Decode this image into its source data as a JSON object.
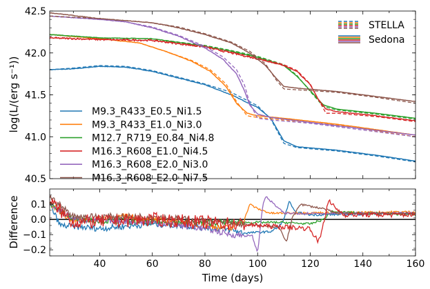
{
  "chart_data": [
    {
      "type": "line",
      "panel": "top",
      "ylabel": "log(L/(erg s⁻¹))",
      "xlim": [
        21,
        160
      ],
      "ylim": [
        40.5,
        42.5
      ],
      "yticks": [
        40.5,
        41.0,
        41.5,
        42.0,
        42.5
      ],
      "ytick_labels": [
        "40.5",
        "41.0",
        "41.5",
        "42.0",
        "42.5"
      ],
      "xticks": [
        40,
        60,
        80,
        100,
        120,
        140,
        160
      ],
      "grid": false,
      "legend_models": {
        "placement": "lower-left",
        "entries": [
          "M9.3_R433_E0.5_Ni1.5",
          "M9.3_R433_E1.0_Ni3.0",
          "M12.7_R719_E0.84_Ni4.8",
          "M16.3_R608_E1.0_Ni4.5",
          "M16.3_R608_E2.0_Ni3.0",
          "M16.3_R608_E2.0_Ni7.5"
        ]
      },
      "legend_codes": {
        "placement": "top-right",
        "entries": [
          {
            "label": "STELLA",
            "style": "dashed"
          },
          {
            "label": "Sedona",
            "style": "solid"
          }
        ]
      },
      "series": [
        {
          "name": "M9.3_R433_E0.5_Ni1.5",
          "color": "#1f77b4",
          "x": [
            21,
            30,
            40,
            50,
            60,
            70,
            80,
            90,
            100,
            105,
            110,
            115,
            130,
            145,
            160
          ],
          "sedona": [
            41.8,
            41.81,
            41.84,
            41.83,
            41.78,
            41.7,
            41.62,
            41.5,
            41.35,
            41.22,
            40.95,
            40.88,
            40.84,
            40.78,
            40.71
          ],
          "stella": [
            41.8,
            41.82,
            41.85,
            41.84,
            41.79,
            41.71,
            41.63,
            41.53,
            41.37,
            41.21,
            40.92,
            40.87,
            40.83,
            40.77,
            40.7
          ]
        },
        {
          "name": "M9.3_R433_E1.0_Ni3.0",
          "color": "#ff7f0e",
          "x": [
            21,
            40,
            55,
            65,
            75,
            82,
            88,
            92,
            96,
            100,
            110,
            130,
            160
          ],
          "sedona": [
            42.22,
            42.17,
            42.12,
            42.02,
            41.9,
            41.78,
            41.6,
            41.4,
            41.28,
            41.25,
            41.22,
            41.15,
            41.02
          ],
          "stella": [
            42.22,
            42.17,
            42.12,
            42.02,
            41.91,
            41.8,
            41.63,
            41.42,
            41.25,
            41.23,
            41.2,
            41.14,
            41.0
          ]
        },
        {
          "name": "M12.7_R719_E0.84_Ni4.8",
          "color": "#2ca02c",
          "x": [
            21,
            40,
            60,
            80,
            90,
            100,
            110,
            115,
            120,
            125,
            130,
            145,
            160
          ],
          "sedona": [
            42.22,
            42.18,
            42.17,
            42.08,
            42.02,
            41.95,
            41.85,
            41.72,
            41.55,
            41.38,
            41.33,
            41.28,
            41.22
          ],
          "stella": [
            42.22,
            42.18,
            42.17,
            42.09,
            42.03,
            41.96,
            41.86,
            41.73,
            41.54,
            41.36,
            41.32,
            41.27,
            41.21
          ]
        },
        {
          "name": "M16.3_R608_E1.0_Ni4.5",
          "color": "#d62728",
          "x": [
            21,
            40,
            60,
            80,
            90,
            100,
            110,
            115,
            120,
            123,
            126,
            130,
            145,
            160
          ],
          "sedona": [
            42.18,
            42.16,
            42.15,
            42.07,
            42.0,
            41.93,
            41.85,
            41.78,
            41.62,
            41.45,
            41.33,
            41.3,
            41.25,
            41.19
          ],
          "stella": [
            42.18,
            42.16,
            42.15,
            42.08,
            42.01,
            41.94,
            41.86,
            41.79,
            41.63,
            41.45,
            41.28,
            41.28,
            41.24,
            41.18
          ]
        },
        {
          "name": "M16.3_R608_E2.0_Ni3.0",
          "color": "#9467bd",
          "x": [
            21,
            40,
            50,
            60,
            70,
            80,
            87,
            92,
            95,
            97,
            100,
            105,
            120,
            160
          ],
          "sedona": [
            42.44,
            42.4,
            42.37,
            42.3,
            42.2,
            42.06,
            41.92,
            41.75,
            41.55,
            41.38,
            41.27,
            41.23,
            41.17,
            41.02
          ],
          "stella": [
            42.44,
            42.4,
            42.37,
            42.31,
            42.21,
            42.08,
            41.95,
            41.8,
            41.62,
            41.4,
            41.22,
            41.2,
            41.16,
            41.0
          ]
        },
        {
          "name": "M16.3_R608_E2.0_Ni7.5",
          "color": "#8c564b",
          "x": [
            21,
            40,
            60,
            70,
            80,
            90,
            97,
            103,
            107,
            110,
            115,
            130,
            145,
            160
          ],
          "sedona": [
            42.48,
            42.41,
            42.36,
            42.3,
            42.22,
            42.12,
            42.0,
            41.85,
            41.7,
            41.6,
            41.58,
            41.54,
            41.48,
            41.42
          ],
          "stella": [
            42.44,
            42.41,
            42.36,
            42.31,
            42.23,
            42.13,
            42.02,
            41.87,
            41.68,
            41.57,
            41.56,
            41.53,
            41.47,
            41.4
          ]
        }
      ]
    },
    {
      "type": "line",
      "panel": "bottom",
      "xlabel": "Time (days)",
      "ylabel": "Difference",
      "xlim": [
        21,
        160
      ],
      "ylim": [
        -0.24,
        0.2
      ],
      "yticks": [
        -0.2,
        -0.1,
        0.0,
        0.1
      ],
      "ytick_labels": [
        "−0.2",
        "−0.1",
        "0.0",
        "0.1"
      ],
      "xticks": [
        40,
        60,
        80,
        100,
        120,
        140,
        160
      ],
      "xtick_labels": [
        "40",
        "60",
        "80",
        "100",
        "120",
        "140",
        "160"
      ],
      "reference_line": 0.0,
      "grid": false,
      "series": [
        {
          "name": "M9.3_R433_E0.5_Ni1.5",
          "color": "#1f77b4",
          "x": [
            21,
            25,
            40,
            60,
            80,
            90,
            95,
            105,
            108,
            110,
            112,
            114,
            120,
            160
          ],
          "y": [
            0.1,
            -0.04,
            -0.06,
            -0.03,
            -0.05,
            -0.07,
            -0.09,
            -0.08,
            -0.05,
            0.0,
            0.12,
            0.05,
            0.03,
            0.04
          ]
        },
        {
          "name": "M9.3_R433_E1.0_Ni3.0",
          "color": "#ff7f0e",
          "x": [
            21,
            30,
            50,
            80,
            90,
            95,
            97,
            100,
            105,
            160
          ],
          "y": [
            0.1,
            -0.01,
            0.02,
            -0.04,
            -0.06,
            0.0,
            0.1,
            0.07,
            0.04,
            0.05
          ]
        },
        {
          "name": "M12.7_R719_E0.84_Ni4.8",
          "color": "#2ca02c",
          "x": [
            21,
            30,
            60,
            80,
            100,
            110,
            120,
            125,
            128,
            160
          ],
          "y": [
            0.1,
            0.0,
            -0.02,
            -0.02,
            -0.02,
            -0.02,
            -0.03,
            0.0,
            0.05,
            0.03
          ]
        },
        {
          "name": "M16.3_R608_E2.0_Ni3.0",
          "color": "#9467bd",
          "x": [
            21,
            30,
            60,
            80,
            90,
            98,
            100,
            102,
            103,
            105,
            110,
            160
          ],
          "y": [
            0.1,
            0.0,
            -0.02,
            -0.06,
            -0.1,
            -0.11,
            -0.22,
            0.1,
            0.15,
            0.12,
            0.04,
            0.04
          ]
        },
        {
          "name": "M16.3_R608_E2.0_Ni7.5",
          "color": "#8c564b",
          "x": [
            21,
            30,
            60,
            80,
            100,
            108,
            111,
            113,
            116,
            125,
            130,
            160
          ],
          "y": [
            0.15,
            0.02,
            0.02,
            -0.01,
            -0.04,
            -0.05,
            -0.15,
            0.0,
            0.1,
            0.07,
            0.04,
            0.04
          ]
        },
        {
          "name": "M16.3_R608_E1.0_Ni4.5",
          "color": "#d62728",
          "x": [
            21,
            30,
            60,
            80,
            100,
            110,
            120,
            123,
            124,
            126,
            127,
            130,
            133,
            160
          ],
          "y": [
            0.12,
            -0.02,
            0.0,
            -0.02,
            -0.04,
            -0.05,
            -0.06,
            -0.15,
            -0.1,
            0.05,
            0.12,
            0.07,
            0.03,
            0.03
          ]
        }
      ]
    }
  ]
}
